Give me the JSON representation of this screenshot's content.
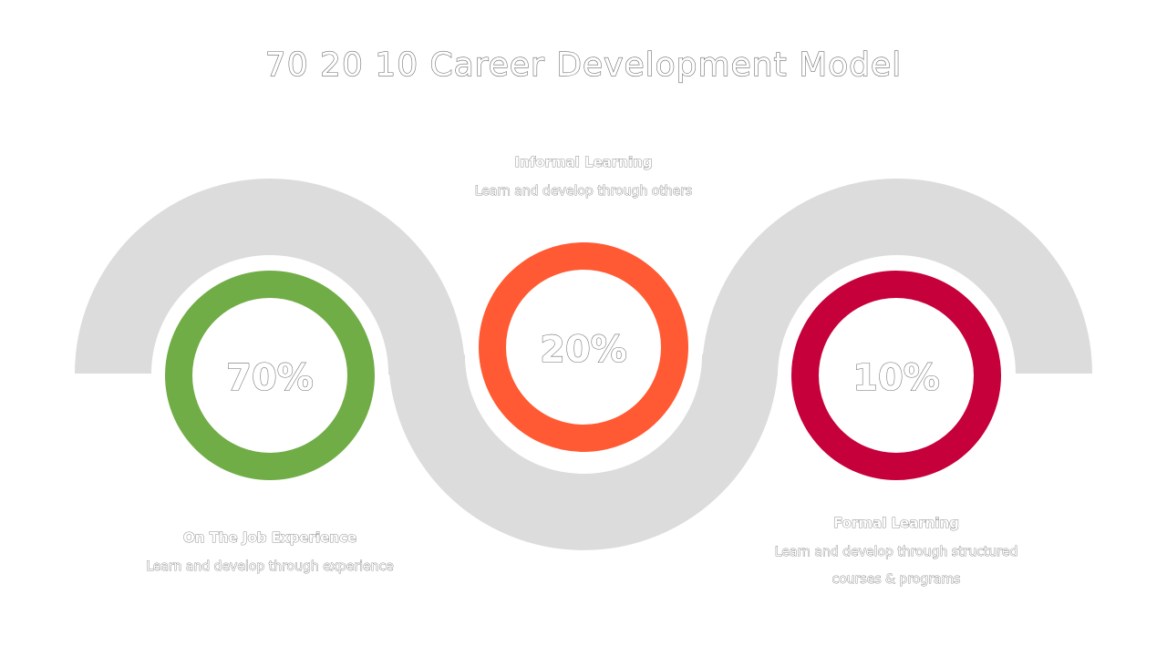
{
  "title": "70 20 10 Career Development Model",
  "colors": {
    "band": "#dcdcdc",
    "green": "#70ad47",
    "orange": "#ff5a33",
    "crimson": "#c5003a",
    "text_outline": "#6e6e6e"
  },
  "segments": [
    {
      "percent": "70%",
      "value": 70,
      "color": "#70ad47",
      "heading": "On The Job Experience",
      "lines": [
        "Learn and develop through experience"
      ]
    },
    {
      "percent": "20%",
      "value": 20,
      "color": "#ff5a33",
      "heading": "Informal Learning",
      "lines": [
        "Learn and develop through others"
      ]
    },
    {
      "percent": "10%",
      "value": 10,
      "color": "#c5003a",
      "heading": "Formal Learning",
      "lines": [
        "Learn and develop through structured",
        "courses & programs"
      ]
    }
  ]
}
